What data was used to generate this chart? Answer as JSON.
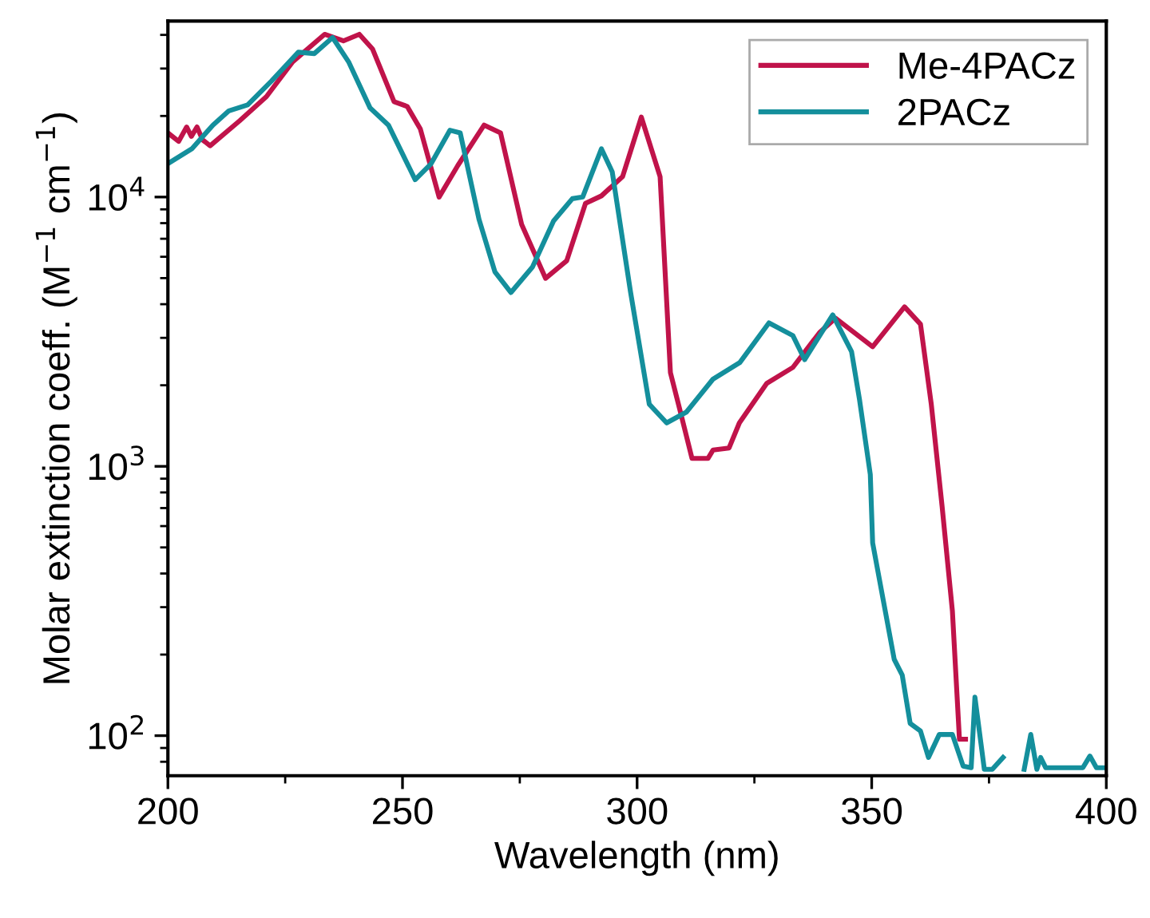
{
  "chart_data": {
    "type": "line",
    "xlabel": "Wavelength (nm)",
    "ylabel": "Molar extinction coeff. (M$^{−1}$ cm$^{−1}$)",
    "log": "y",
    "xlim": [
      200,
      400
    ],
    "xticks": [
      200,
      250,
      300,
      350,
      400
    ],
    "ylim": [
      71,
      45000
    ],
    "yticks": [
      {
        "value": 100,
        "label": "10$^{2}$"
      },
      {
        "value": 1000,
        "label": "10$^{3}$"
      },
      {
        "value": 10000,
        "label": "10$^{4}$"
      }
    ],
    "grid": false,
    "legend": "top right",
    "line_style": "solid",
    "marker": "none",
    "series": [
      {
        "name": "Me-4PACz",
        "color": "#c0134a",
        "x": [
          200,
          202.3,
          204,
          205,
          206.2,
          207.4,
          209,
          215.3,
          221,
          226.6,
          233.4,
          237.4,
          240.8,
          243.6,
          248.2,
          251,
          253.8,
          257.8,
          261.8,
          267.4,
          270.9,
          275.4,
          280.5,
          285,
          289,
          292.4,
          296.9,
          300.9,
          304.9,
          307.1,
          309.4,
          311.7,
          315.1,
          316.2,
          319.6,
          321.8,
          327.6,
          333.2,
          338.9,
          342.3,
          350.2,
          357,
          360.4,
          362.7,
          365,
          367.2,
          368.7,
          370
        ],
        "values": [
          17300,
          16100,
          18200,
          16800,
          18200,
          16300,
          15500,
          19200,
          23600,
          31800,
          40200,
          38000,
          40200,
          35500,
          22600,
          21700,
          17900,
          10000,
          13100,
          18500,
          17300,
          7900,
          4990,
          5800,
          9470,
          10100,
          11900,
          19800,
          11900,
          2230,
          1550,
          1070,
          1070,
          1150,
          1170,
          1450,
          2030,
          2330,
          3140,
          3550,
          2780,
          3910,
          3370,
          1700,
          711,
          290,
          97,
          97
        ]
      },
      {
        "name": "2PACz",
        "color": "#148f9c",
        "x": [
          200,
          205.1,
          209.6,
          213,
          217,
          222.1,
          227.8,
          231.2,
          235.1,
          238.5,
          243.1,
          247,
          252.7,
          256.1,
          260.1,
          262.3,
          266.3,
          269.7,
          273.1,
          277.7,
          282.2,
          286.2,
          288.4,
          292.4,
          294.7,
          298.6,
          302.6,
          306.3,
          310.5,
          316.2,
          321.9,
          328.1,
          333.2,
          335.7,
          341.7,
          345.7,
          347.4,
          349.7,
          350.2,
          354.8,
          356.5,
          358.2,
          360.4,
          362.1,
          364.4,
          367.2,
          369.5,
          371.2,
          372,
          374,
          375.7,
          378,
          380,
          382.5,
          383.9,
          385.2,
          386,
          387.1,
          395,
          396.5,
          397.9,
          399.6
        ],
        "values": [
          13300,
          15100,
          18500,
          20900,
          22000,
          27000,
          34500,
          34100,
          39100,
          31800,
          21400,
          18500,
          11600,
          13300,
          17700,
          17300,
          8270,
          5270,
          4420,
          5500,
          8150,
          9860,
          10000,
          15100,
          12400,
          4440,
          1700,
          1450,
          1590,
          2110,
          2430,
          3410,
          3060,
          2490,
          3650,
          2670,
          1770,
          933,
          520,
          192,
          168,
          111,
          104,
          83,
          101,
          101,
          77,
          76,
          139,
          75,
          75,
          83,
          null,
          75,
          101,
          75,
          83,
          76,
          76,
          84,
          76,
          76
        ]
      }
    ]
  }
}
